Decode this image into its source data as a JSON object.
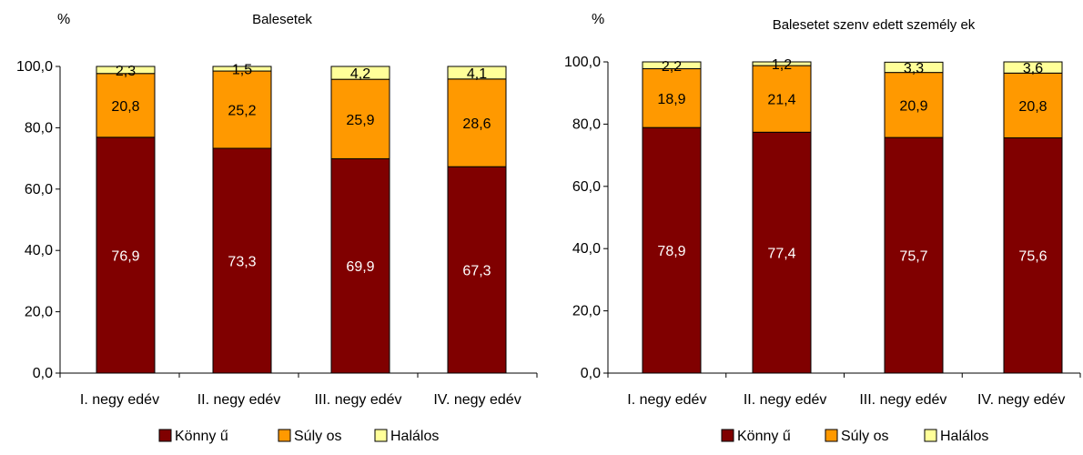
{
  "chart_data": [
    {
      "type": "bar",
      "stacked": true,
      "title": "Balesetek",
      "ylabel": "%",
      "xlabel": "",
      "ylim": [
        0,
        100
      ],
      "yticks": [
        "0,0",
        "20,0",
        "40,0",
        "60,0",
        "80,0",
        "100,0"
      ],
      "categories": [
        "I. negy edév",
        "II. negy edév",
        "III. negy edév",
        "IV. negy edév"
      ],
      "series": [
        {
          "name": "Könny ű",
          "values": [
            76.9,
            73.3,
            69.9,
            67.3
          ],
          "labels": [
            "76,9",
            "73,3",
            "69,9",
            "67,3"
          ],
          "color": "#800000",
          "label_color": "#ffffff"
        },
        {
          "name": "Súly os",
          "values": [
            20.8,
            25.2,
            25.9,
            28.6
          ],
          "labels": [
            "20,8",
            "25,2",
            "25,9",
            "28,6"
          ],
          "color": "#ff9900",
          "label_color": "#000000"
        },
        {
          "name": "Halálos",
          "values": [
            2.3,
            1.5,
            4.2,
            4.1
          ],
          "labels": [
            "2,3",
            "1,5",
            "4,2",
            "4,1"
          ],
          "color": "#ffff99",
          "label_color": "#000000"
        }
      ],
      "grid": false,
      "legend_position": "bottom"
    },
    {
      "type": "bar",
      "stacked": true,
      "title": "Balesetet szenv edett személy ek",
      "ylabel": "%",
      "xlabel": "",
      "ylim": [
        0,
        100
      ],
      "yticks": [
        "0,0",
        "20,0",
        "40,0",
        "60,0",
        "80,0",
        "100,0"
      ],
      "categories": [
        "I. negy edév",
        "II. negy edév",
        "III. negy edév",
        "IV. negy edév"
      ],
      "series": [
        {
          "name": "Könny ű",
          "values": [
            78.9,
            77.4,
            75.7,
            75.6
          ],
          "labels": [
            "78,9",
            "77,4",
            "75,7",
            "75,6"
          ],
          "color": "#800000",
          "label_color": "#ffffff"
        },
        {
          "name": "Súly os",
          "values": [
            18.9,
            21.4,
            20.9,
            20.8
          ],
          "labels": [
            "18,9",
            "21,4",
            "20,9",
            "20,8"
          ],
          "color": "#ff9900",
          "label_color": "#000000"
        },
        {
          "name": "Halálos",
          "values": [
            2.2,
            1.2,
            3.3,
            3.6
          ],
          "labels": [
            "2,2",
            "1,2",
            "3,3",
            "3,6"
          ],
          "color": "#ffff99",
          "label_color": "#000000"
        }
      ],
      "grid": false,
      "legend_position": "bottom"
    }
  ]
}
